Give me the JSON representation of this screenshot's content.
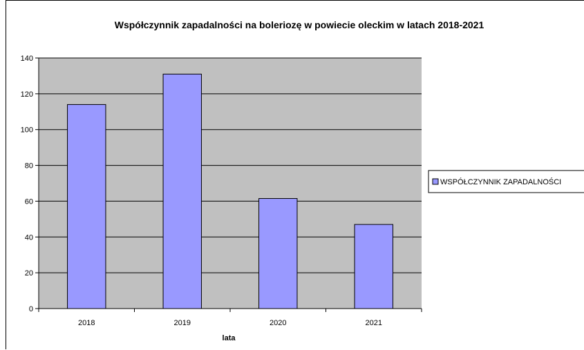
{
  "chart_data": {
    "type": "bar",
    "title": "Współczynnik zapadalności na boleriozę w powiecie oleckim w latach 2018-2021",
    "xlabel": "lata",
    "ylabel": "",
    "categories": [
      "2018",
      "2019",
      "2020",
      "2021"
    ],
    "series": [
      {
        "name": "WSPÓŁCZYNNIK ZAPADALNOŚCI",
        "values": [
          114,
          131,
          61.5,
          47
        ]
      }
    ],
    "ylim": [
      0,
      140
    ],
    "yticks": [
      "0",
      "20",
      "40",
      "60",
      "80",
      "100",
      "120",
      "140"
    ],
    "grid": true,
    "legend": "right",
    "colors": {
      "bar": "#9999ff",
      "plot_background": "#c0c0c0",
      "gridline": "#000000"
    }
  }
}
